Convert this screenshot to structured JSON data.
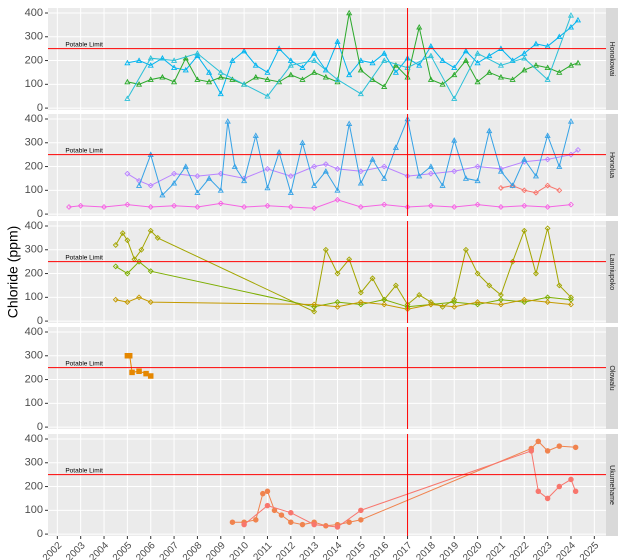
{
  "chart_data": {
    "type": "line",
    "y_label": "Chloride (ppm)",
    "xlim": [
      2001.6,
      2025.5
    ],
    "xticks": [
      2002,
      2003,
      2004,
      2005,
      2006,
      2007,
      2008,
      2009,
      2010,
      2011,
      2012,
      2013,
      2014,
      2015,
      2016,
      2017,
      2018,
      2019,
      2020,
      2021,
      2022,
      2023,
      2024,
      2025
    ],
    "ylim": [
      -8,
      421
    ],
    "yticks": [
      0,
      100,
      200,
      300,
      400
    ],
    "grid": true,
    "hline": {
      "value": 250,
      "label": "Potable Limit",
      "color": "#ff0000"
    },
    "vline": {
      "value": 2017,
      "color": "#ff0000"
    },
    "facets": [
      {
        "name": "Honokowai",
        "series": [
          {
            "color": "#00b4ef",
            "marker": "triangle",
            "x": [
              2005,
              2005.5,
              2006,
              2006.5,
              2007,
              2007.5,
              2008,
              2008.5,
              2009,
              2009.5,
              2010,
              2010.5,
              2011,
              2011.5,
              2012,
              2012.5,
              2013,
              2013.5,
              2014,
              2014.5,
              2015,
              2015.5,
              2016,
              2016.5,
              2017,
              2017.5,
              2018,
              2018.5,
              2019,
              2019.5,
              2020,
              2020.5,
              2021,
              2021.5,
              2022,
              2022.5,
              2023,
              2023.5,
              2024,
              2024.3
            ],
            "values": [
              190,
              200,
              180,
              210,
              170,
              160,
              220,
              150,
              60,
              200,
              240,
              180,
              150,
              250,
              200,
              170,
              230,
              160,
              280,
              140,
              200,
              190,
              230,
              150,
              210,
              180,
              260,
              200,
              170,
              240,
              190,
              220,
              250,
              200,
              230,
              270,
              260,
              300,
              340,
              370
            ]
          },
          {
            "color": "#2aa92a",
            "marker": "triangle",
            "x": [
              2005,
              2005.5,
              2006,
              2006.5,
              2007,
              2007.5,
              2008,
              2008.5,
              2009,
              2009.5,
              2010,
              2010.5,
              2011,
              2011.5,
              2012,
              2012.5,
              2013,
              2013.5,
              2014,
              2014.5,
              2015,
              2015.5,
              2016,
              2016.5,
              2017,
              2017.5,
              2018,
              2018.5,
              2019,
              2019.5,
              2020,
              2020.5,
              2021,
              2021.5,
              2022,
              2022.5,
              2023,
              2023.5,
              2024,
              2024.3
            ],
            "values": [
              110,
              100,
              120,
              130,
              110,
              210,
              120,
              110,
              130,
              120,
              100,
              130,
              120,
              110,
              140,
              120,
              150,
              130,
              110,
              400,
              160,
              120,
              90,
              180,
              130,
              340,
              120,
              100,
              140,
              200,
              110,
              150,
              130,
              120,
              160,
              180,
              170,
              150,
              180,
              190
            ]
          },
          {
            "color": "#2cc0d8",
            "marker": "triangle",
            "x": [
              2005,
              2006,
              2007,
              2008,
              2009,
              2010,
              2011,
              2012,
              2013,
              2014,
              2015,
              2016,
              2017,
              2018,
              2019,
              2020,
              2021,
              2022,
              2023,
              2024
            ],
            "values": [
              40,
              210,
              200,
              230,
              150,
              100,
              50,
              180,
              200,
              120,
              60,
              200,
              170,
              220,
              40,
              230,
              180,
              210,
              120,
              390
            ]
          }
        ]
      },
      {
        "name": "Honolua",
        "series": [
          {
            "color": "#b983ff",
            "marker": "diamond",
            "x": [
              2005,
              2005.5,
              2006,
              2007,
              2008,
              2009,
              2010,
              2011,
              2012,
              2013,
              2013.5,
              2014,
              2015,
              2016,
              2017,
              2018,
              2019,
              2020,
              2021,
              2022,
              2023,
              2024,
              2024.3
            ],
            "values": [
              170,
              140,
              120,
              170,
              160,
              170,
              150,
              190,
              160,
              200,
              210,
              190,
              180,
              200,
              160,
              170,
              180,
              200,
              190,
              220,
              230,
              250,
              270
            ]
          },
          {
            "color": "#f564e3",
            "marker": "diamond",
            "x": [
              2002.5,
              2003,
              2004,
              2005,
              2006,
              2007,
              2008,
              2009,
              2010,
              2011,
              2012,
              2013,
              2014,
              2015,
              2016,
              2017,
              2018,
              2019,
              2020,
              2021,
              2022,
              2023,
              2024
            ],
            "values": [
              30,
              35,
              30,
              40,
              30,
              35,
              30,
              45,
              30,
              35,
              30,
              25,
              60,
              30,
              40,
              30,
              35,
              30,
              40,
              30,
              35,
              30,
              40
            ]
          },
          {
            "color": "#f8766d",
            "marker": "diamond",
            "x": [
              2021,
              2021.5,
              2022,
              2022.5,
              2023,
              2023.5
            ],
            "values": [
              110,
              120,
              100,
              90,
              120,
              100
            ]
          },
          {
            "color": "#35a2e6",
            "marker": "triangle",
            "x": [
              2005.5,
              2006,
              2006.5,
              2007,
              2007.5,
              2008,
              2008.5,
              2009,
              2009.3,
              2009.6,
              2010,
              2010.5,
              2011,
              2011.5,
              2012,
              2012.5,
              2013,
              2013.5,
              2014,
              2014.5,
              2015,
              2015.5,
              2016,
              2016.5,
              2017,
              2017.5,
              2018,
              2018.5,
              2019,
              2019.5,
              2020,
              2020.5,
              2021,
              2021.5,
              2022,
              2022.5,
              2023,
              2023.5,
              2024
            ],
            "values": [
              120,
              250,
              80,
              130,
              200,
              90,
              150,
              100,
              390,
              200,
              140,
              330,
              110,
              260,
              90,
              300,
              120,
              180,
              100,
              380,
              130,
              230,
              150,
              280,
              400,
              160,
              200,
              120,
              310,
              150,
              140,
              350,
              180,
              120,
              230,
              160,
              330,
              200,
              390
            ]
          }
        ]
      },
      {
        "name": "Launiupoko",
        "series": [
          {
            "color": "#a3a500",
            "marker": "diamond",
            "x": [
              2004.5,
              2004.8,
              2005,
              2005.3,
              2005.6,
              2006,
              2006.3,
              2013,
              2013.5,
              2014,
              2014.5,
              2015,
              2015.5,
              2016,
              2016.5,
              2017,
              2017.5,
              2018,
              2018.5,
              2019,
              2019.5,
              2020,
              2020.5,
              2021,
              2021.5,
              2022,
              2022.5,
              2023,
              2023.5,
              2024
            ],
            "values": [
              320,
              370,
              340,
              260,
              300,
              380,
              350,
              40,
              300,
              200,
              260,
              120,
              180,
              90,
              150,
              70,
              110,
              80,
              60,
              90,
              300,
              200,
              150,
              110,
              250,
              380,
              200,
              390,
              150,
              100
            ]
          },
          {
            "color": "#7cae00",
            "marker": "diamond",
            "x": [
              2004.5,
              2005,
              2005.5,
              2006,
              2013,
              2014,
              2015,
              2016,
              2017,
              2018,
              2019,
              2020,
              2021,
              2022,
              2023,
              2024
            ],
            "values": [
              230,
              200,
              250,
              210,
              60,
              80,
              70,
              90,
              60,
              70,
              80,
              70,
              90,
              80,
              100,
              90
            ]
          },
          {
            "color": "#c49a00",
            "marker": "diamond",
            "x": [
              2004.5,
              2005,
              2005.5,
              2006,
              2013,
              2014,
              2015,
              2016,
              2017,
              2018,
              2019,
              2020,
              2021,
              2022,
              2023,
              2024
            ],
            "values": [
              90,
              80,
              100,
              80,
              70,
              60,
              80,
              70,
              50,
              70,
              60,
              80,
              70,
              90,
              80,
              70
            ]
          }
        ]
      },
      {
        "name": "Olowalu",
        "series": [
          {
            "color": "#e58700",
            "marker": "square",
            "x": [
              2005,
              2005.1,
              2005.2,
              2005.5,
              2005.8,
              2006
            ],
            "values": [
              300,
              300,
              230,
              235,
              225,
              215
            ]
          }
        ]
      },
      {
        "name": "Ukumehame",
        "series": [
          {
            "color": "#f0834e",
            "marker": "circle",
            "x": [
              2009.5,
              2010,
              2010.5,
              2010.8,
              2011,
              2011.3,
              2011.6,
              2012,
              2012.5,
              2013,
              2013.5,
              2014,
              2014.5,
              2015,
              2022.3,
              2022.6,
              2023,
              2023.5,
              2024.2
            ],
            "values": [
              50,
              50,
              60,
              170,
              180,
              100,
              80,
              50,
              40,
              50,
              35,
              40,
              50,
              60,
              360,
              390,
              350,
              370,
              365
            ]
          },
          {
            "color": "#f8766d",
            "marker": "circle",
            "x": [
              2010,
              2011,
              2012,
              2013,
              2014,
              2015,
              2022.3,
              2022.6,
              2023,
              2023.5,
              2024,
              2024.2
            ],
            "values": [
              40,
              120,
              90,
              40,
              30,
              100,
              350,
              180,
              150,
              200,
              230,
              180
            ]
          }
        ]
      }
    ]
  }
}
